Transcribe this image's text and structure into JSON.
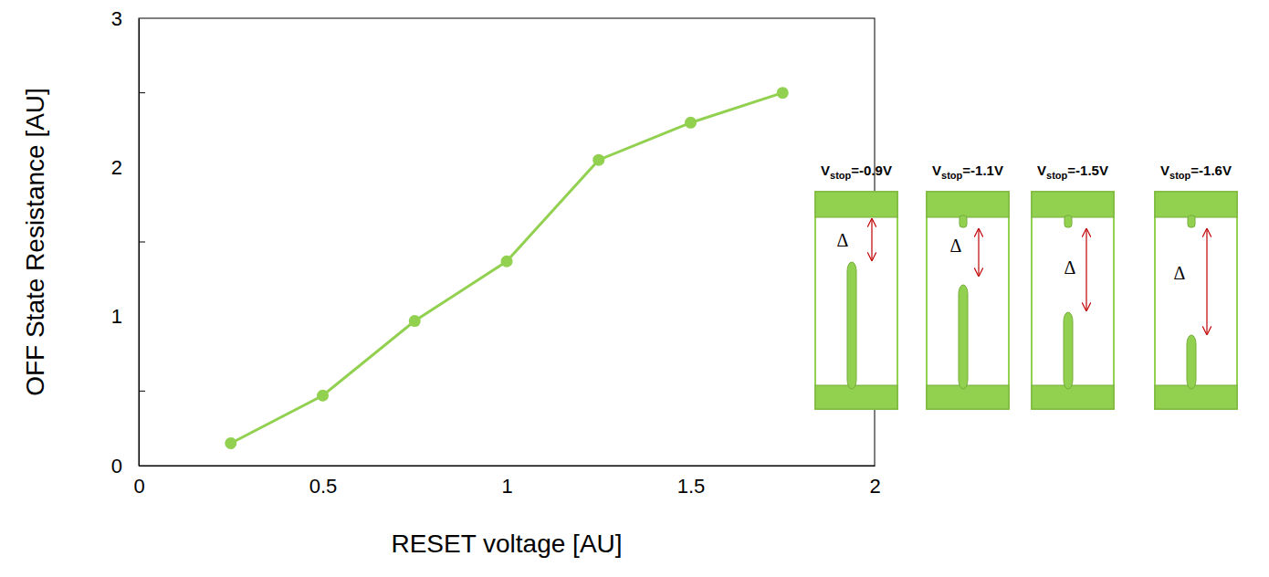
{
  "chart_data": {
    "type": "line",
    "x": [
      0.25,
      0.5,
      0.75,
      1,
      1.25,
      1.5,
      1.75
    ],
    "values": [
      0.15,
      0.47,
      0.97,
      1.37,
      2.05,
      2.3,
      2.5
    ],
    "color": "#92d050",
    "marker": "circle",
    "xlim": [
      0,
      2
    ],
    "xticks": [
      0,
      0.5,
      1,
      1.5,
      2
    ],
    "ylim": [
      0,
      3
    ],
    "yticks": [
      0,
      1,
      2,
      3
    ],
    "y_minor_ticks": [
      0.5,
      1.5,
      2.5
    ],
    "x_label": "RESET voltage [AU]",
    "y_label": "OFF State Resistance [AU]",
    "insets": [
      {
        "v": "V",
        "sub": "stop",
        "rest": "=-0.9V",
        "delta": "Δ"
      },
      {
        "v": "V",
        "sub": "stop",
        "rest": "=-1.1V",
        "delta": "Δ"
      },
      {
        "v": "V",
        "sub": "stop",
        "rest": "=-1.5V",
        "delta": "Δ"
      },
      {
        "v": "V",
        "sub": "stop",
        "rest": "=-1.6V",
        "delta": "Δ"
      }
    ]
  }
}
